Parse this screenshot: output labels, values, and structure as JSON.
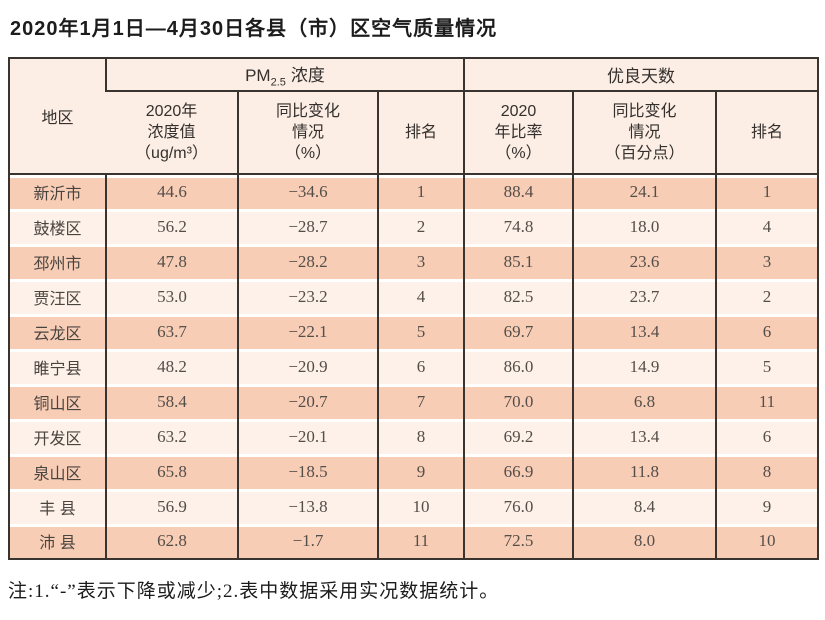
{
  "page": {
    "title": "2020年1月1日—4月30日各县（市）区空气质量情况",
    "note": "注:1.“-”表示下降或减少;2.表中数据采用实况数据统计。"
  },
  "table": {
    "corner_header": "地区",
    "group1": {
      "prefix": "PM",
      "sub": "2.5",
      "suffix": "浓度"
    },
    "group2": "优良天数",
    "sub_headers": {
      "pm_value": "2020年\n浓度值\n（ug/m³）",
      "pm_change": "同比变化\n情况\n（%）",
      "pm_rank": "排名",
      "days_rate": "2020\n年比率\n（%）",
      "days_change": "同比变化\n情况\n（百分点）",
      "days_rank": "排名"
    },
    "rows": [
      {
        "region": "新沂市",
        "pm_value": "44.6",
        "pm_change": "−34.6",
        "pm_rank": "1",
        "days_rate": "88.4",
        "days_change": "24.1",
        "days_rank": "1"
      },
      {
        "region": "鼓楼区",
        "pm_value": "56.2",
        "pm_change": "−28.7",
        "pm_rank": "2",
        "days_rate": "74.8",
        "days_change": "18.0",
        "days_rank": "4"
      },
      {
        "region": "邳州市",
        "pm_value": "47.8",
        "pm_change": "−28.2",
        "pm_rank": "3",
        "days_rate": "85.1",
        "days_change": "23.6",
        "days_rank": "3"
      },
      {
        "region": "贾汪区",
        "pm_value": "53.0",
        "pm_change": "−23.2",
        "pm_rank": "4",
        "days_rate": "82.5",
        "days_change": "23.7",
        "days_rank": "2"
      },
      {
        "region": "云龙区",
        "pm_value": "63.7",
        "pm_change": "−22.1",
        "pm_rank": "5",
        "days_rate": "69.7",
        "days_change": "13.4",
        "days_rank": "6"
      },
      {
        "region": "睢宁县",
        "pm_value": "48.2",
        "pm_change": "−20.9",
        "pm_rank": "6",
        "days_rate": "86.0",
        "days_change": "14.9",
        "days_rank": "5"
      },
      {
        "region": "铜山区",
        "pm_value": "58.4",
        "pm_change": "−20.7",
        "pm_rank": "7",
        "days_rate": "70.0",
        "days_change": "6.8",
        "days_rank": "11"
      },
      {
        "region": "开发区",
        "pm_value": "63.2",
        "pm_change": "−20.1",
        "pm_rank": "8",
        "days_rate": "69.2",
        "days_change": "13.4",
        "days_rank": "6"
      },
      {
        "region": "泉山区",
        "pm_value": "65.8",
        "pm_change": "−18.5",
        "pm_rank": "9",
        "days_rate": "66.9",
        "days_change": "11.8",
        "days_rank": "8"
      },
      {
        "region": "丰 县",
        "pm_value": "56.9",
        "pm_change": "−13.8",
        "pm_rank": "10",
        "days_rate": "76.0",
        "days_change": "8.4",
        "days_rank": "9"
      },
      {
        "region": "沛 县",
        "pm_value": "62.8",
        "pm_change": "−1.7",
        "pm_rank": "11",
        "days_rate": "72.5",
        "days_change": "8.0",
        "days_rank": "10"
      }
    ],
    "colors": {
      "border": "#3a3430",
      "header_bg": "#fcede5",
      "row_odd_bg": "#f8cdb6",
      "row_even_bg": "#fdf1ea",
      "data_text": "#544e49"
    }
  }
}
